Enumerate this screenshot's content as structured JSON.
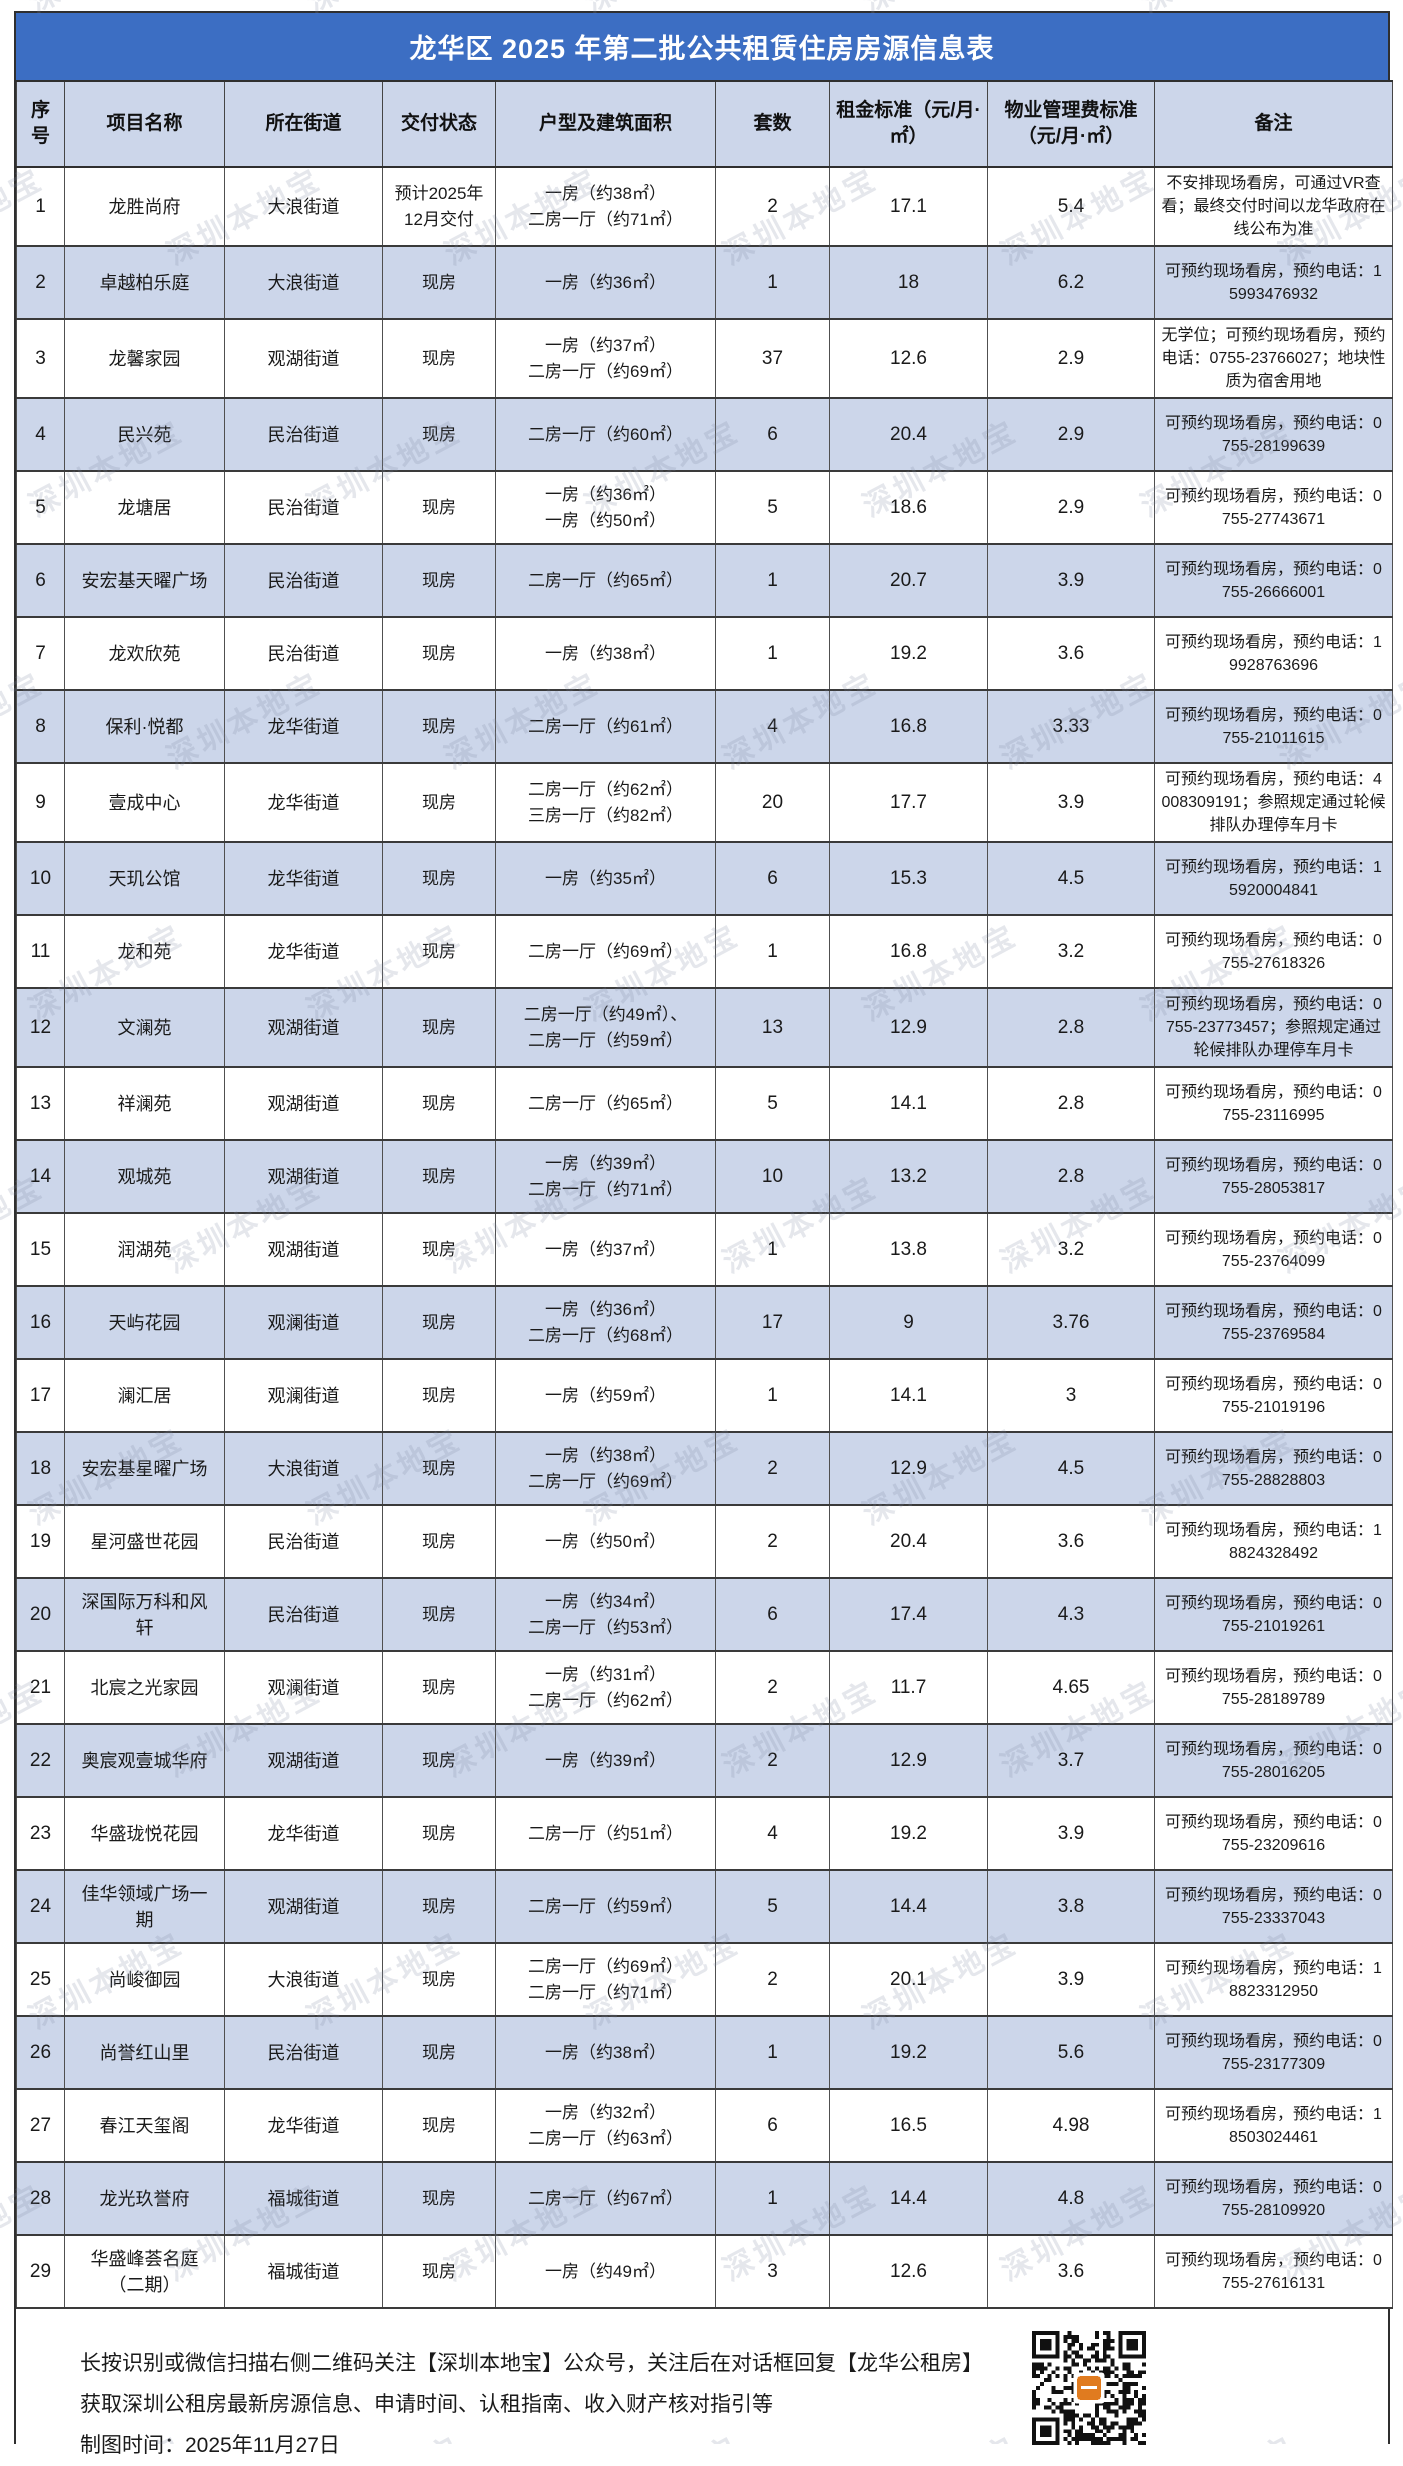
{
  "title": "龙华区 2025 年第二批公共租赁住房房源信息表",
  "watermark_text": "深圳本地宝",
  "colors": {
    "title_bg": "#3c6ec3",
    "title_text": "#ffffff",
    "header_bg": "#ccd6ea",
    "row_alt_bg": "#ccd6ea",
    "qr_logo": "#e07b1f"
  },
  "columns": [
    "序号",
    "项目名称",
    "所在街道",
    "交付状态",
    "户型及建筑面积",
    "套数",
    "租金标准（元/月·㎡）",
    "物业管理费标准（元/月·㎡）",
    "备注"
  ],
  "rows": [
    {
      "no": "1",
      "name": "龙胜尚府",
      "street": "大浪街道",
      "status": "预计2025年12月交付",
      "units": "一房（约38㎡）\n二房一厅（约71㎡）",
      "count": "2",
      "rent": "17.1",
      "fee": "5.4",
      "remark": "不安排现场看房，可通过VR查看；最终交付时间以龙华政府在线公布为准"
    },
    {
      "no": "2",
      "name": "卓越柏乐庭",
      "street": "大浪街道",
      "status": "现房",
      "units": "一房（约36㎡）",
      "count": "1",
      "rent": "18",
      "fee": "6.2",
      "remark": "可预约现场看房，预约电话：15993476932"
    },
    {
      "no": "3",
      "name": "龙馨家园",
      "street": "观湖街道",
      "status": "现房",
      "units": "一房（约37㎡）\n二房一厅（约69㎡）",
      "count": "37",
      "rent": "12.6",
      "fee": "2.9",
      "remark": "无学位；可预约现场看房，预约电话：0755-23766027；地块性质为宿舍用地"
    },
    {
      "no": "4",
      "name": "民兴苑",
      "street": "民治街道",
      "status": "现房",
      "units": "二房一厅（约60㎡）",
      "count": "6",
      "rent": "20.4",
      "fee": "2.9",
      "remark": "可预约现场看房，预约电话：0755-28199639"
    },
    {
      "no": "5",
      "name": "龙塘居",
      "street": "民治街道",
      "status": "现房",
      "units": "一房（约36㎡）\n一房（约50㎡）",
      "count": "5",
      "rent": "18.6",
      "fee": "2.9",
      "remark": "可预约现场看房，预约电话：0755-27743671"
    },
    {
      "no": "6",
      "name": "安宏基天曜广场",
      "street": "民治街道",
      "status": "现房",
      "units": "二房一厅（约65㎡）",
      "count": "1",
      "rent": "20.7",
      "fee": "3.9",
      "remark": "可预约现场看房，预约电话：0755-26666001"
    },
    {
      "no": "7",
      "name": "龙欢欣苑",
      "street": "民治街道",
      "status": "现房",
      "units": "一房（约38㎡）",
      "count": "1",
      "rent": "19.2",
      "fee": "3.6",
      "remark": "可预约现场看房，预约电话：19928763696"
    },
    {
      "no": "8",
      "name": "保利·悦都",
      "street": "龙华街道",
      "status": "现房",
      "units": "二房一厅（约61㎡）",
      "count": "4",
      "rent": "16.8",
      "fee": "3.33",
      "remark": "可预约现场看房，预约电话：0755-21011615"
    },
    {
      "no": "9",
      "name": "壹成中心",
      "street": "龙华街道",
      "status": "现房",
      "units": "二房一厅（约62㎡）\n三房一厅（约82㎡）",
      "count": "20",
      "rent": "17.7",
      "fee": "3.9",
      "remark": "可预约现场看房，预约电话：4008309191；参照规定通过轮候排队办理停车月卡"
    },
    {
      "no": "10",
      "name": "天玑公馆",
      "street": "龙华街道",
      "status": "现房",
      "units": "一房（约35㎡）",
      "count": "6",
      "rent": "15.3",
      "fee": "4.5",
      "remark": "可预约现场看房，预约电话：15920004841"
    },
    {
      "no": "11",
      "name": "龙和苑",
      "street": "龙华街道",
      "status": "现房",
      "units": "二房一厅（约69㎡）",
      "count": "1",
      "rent": "16.8",
      "fee": "3.2",
      "remark": "可预约现场看房，预约电话：0755-27618326"
    },
    {
      "no": "12",
      "name": "文澜苑",
      "street": "观湖街道",
      "status": "现房",
      "units": "二房一厅（约49㎡）、\n二房一厅（约59㎡）",
      "count": "13",
      "rent": "12.9",
      "fee": "2.8",
      "remark": "可预约现场看房，预约电话：0755-23773457；参照规定通过轮候排队办理停车月卡"
    },
    {
      "no": "13",
      "name": "祥澜苑",
      "street": "观湖街道",
      "status": "现房",
      "units": "二房一厅（约65㎡）",
      "count": "5",
      "rent": "14.1",
      "fee": "2.8",
      "remark": "可预约现场看房，预约电话：0755-23116995"
    },
    {
      "no": "14",
      "name": "观城苑",
      "street": "观湖街道",
      "status": "现房",
      "units": "一房（约39㎡）\n二房一厅（约71㎡）",
      "count": "10",
      "rent": "13.2",
      "fee": "2.8",
      "remark": "可预约现场看房，预约电话：0755-28053817"
    },
    {
      "no": "15",
      "name": "润湖苑",
      "street": "观湖街道",
      "status": "现房",
      "units": "一房（约37㎡）",
      "count": "1",
      "rent": "13.8",
      "fee": "3.2",
      "remark": "可预约现场看房，预约电话：0755-23764099"
    },
    {
      "no": "16",
      "name": "天屿花园",
      "street": "观澜街道",
      "status": "现房",
      "units": "一房（约36㎡）\n二房一厅（约68㎡）",
      "count": "17",
      "rent": "9",
      "fee": "3.76",
      "remark": "可预约现场看房，预约电话：0755-23769584"
    },
    {
      "no": "17",
      "name": "澜汇居",
      "street": "观澜街道",
      "status": "现房",
      "units": "一房（约59㎡）",
      "count": "1",
      "rent": "14.1",
      "fee": "3",
      "remark": "可预约现场看房，预约电话：0755-21019196"
    },
    {
      "no": "18",
      "name": "安宏基星曜广场",
      "street": "大浪街道",
      "status": "现房",
      "units": "一房（约38㎡）\n二房一厅（约69㎡）",
      "count": "2",
      "rent": "12.9",
      "fee": "4.5",
      "remark": "可预约现场看房，预约电话：0755-28828803"
    },
    {
      "no": "19",
      "name": "星河盛世花园",
      "street": "民治街道",
      "status": "现房",
      "units": "一房（约50㎡）",
      "count": "2",
      "rent": "20.4",
      "fee": "3.6",
      "remark": "可预约现场看房，预约电话：18824328492"
    },
    {
      "no": "20",
      "name": "深国际万科和风轩",
      "street": "民治街道",
      "status": "现房",
      "units": "一房（约34㎡）\n二房一厅（约53㎡）",
      "count": "6",
      "rent": "17.4",
      "fee": "4.3",
      "remark": "可预约现场看房，预约电话：0755-21019261"
    },
    {
      "no": "21",
      "name": "北宸之光家园",
      "street": "观澜街道",
      "status": "现房",
      "units": "一房（约31㎡）\n二房一厅（约62㎡）",
      "count": "2",
      "rent": "11.7",
      "fee": "4.65",
      "remark": "可预约现场看房，预约电话：0755-28189789"
    },
    {
      "no": "22",
      "name": "奥宸观壹城华府",
      "street": "观湖街道",
      "status": "现房",
      "units": "一房（约39㎡）",
      "count": "2",
      "rent": "12.9",
      "fee": "3.7",
      "remark": "可预约现场看房，预约电话：0755-28016205"
    },
    {
      "no": "23",
      "name": "华盛珑悦花园",
      "street": "龙华街道",
      "status": "现房",
      "units": "二房一厅（约51㎡）",
      "count": "4",
      "rent": "19.2",
      "fee": "3.9",
      "remark": "可预约现场看房，预约电话：0755-23209616"
    },
    {
      "no": "24",
      "name": "佳华领域广场一期",
      "street": "观湖街道",
      "status": "现房",
      "units": "二房一厅（约59㎡）",
      "count": "5",
      "rent": "14.4",
      "fee": "3.8",
      "remark": "可预约现场看房，预约电话：0755-23337043"
    },
    {
      "no": "25",
      "name": "尚峻御园",
      "street": "大浪街道",
      "status": "现房",
      "units": "二房一厅（约69㎡）\n二房一厅（约71㎡）",
      "count": "2",
      "rent": "20.1",
      "fee": "3.9",
      "remark": "可预约现场看房，预约电话：18823312950"
    },
    {
      "no": "26",
      "name": "尚誉红山里",
      "street": "民治街道",
      "status": "现房",
      "units": "一房（约38㎡）",
      "count": "1",
      "rent": "19.2",
      "fee": "5.6",
      "remark": "可预约现场看房，预约电话：0755-23177309"
    },
    {
      "no": "27",
      "name": "春江天玺阁",
      "street": "龙华街道",
      "status": "现房",
      "units": "一房（约32㎡）\n二房一厅（约63㎡）",
      "count": "6",
      "rent": "16.5",
      "fee": "4.98",
      "remark": "可预约现场看房，预约电话：18503024461"
    },
    {
      "no": "28",
      "name": "龙光玖誉府",
      "street": "福城街道",
      "status": "现房",
      "units": "二房一厅（约67㎡）",
      "count": "1",
      "rent": "14.4",
      "fee": "4.8",
      "remark": "可预约现场看房，预约电话：0755-28109920"
    },
    {
      "no": "29",
      "name": "华盛峰荟名庭（二期）",
      "street": "福城街道",
      "status": "现房",
      "units": "一房（约49㎡）",
      "count": "3",
      "rent": "12.6",
      "fee": "3.6",
      "remark": "可预约现场看房，预约电话：0755-27616131"
    }
  ],
  "footer": {
    "line1": "长按识别或微信扫描右侧二维码关注【深圳本地宝】公众号，关注后在对话框回复【龙华公租房】",
    "line2": "获取深圳公租房最新房源信息、申请时间、认租指南、收入财产核对指引等",
    "line3": "制图时间：2025年11月27日",
    "qr_label": "qr-code"
  }
}
